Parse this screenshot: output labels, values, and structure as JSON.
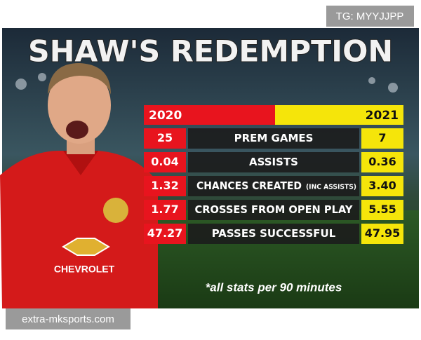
{
  "header": {
    "title": "SHAW'S REDEMPTION"
  },
  "table": {
    "columns": [
      "2020",
      "2021"
    ],
    "rows": [
      {
        "label": "PREM GAMES",
        "v2020": "25",
        "v2021": "7"
      },
      {
        "label": "ASSISTS",
        "v2020": "0.04",
        "v2021": "0.36"
      },
      {
        "label": "CHANCES CREATED",
        "note": "(INC ASSISTS)",
        "v2020": "1.32",
        "v2021": "3.40"
      },
      {
        "label": "CROSSES FROM OPEN PLAY",
        "v2020": "1.77",
        "v2021": "5.55"
      },
      {
        "label": "PASSES SUCCESSFUL",
        "v2020": "47.27",
        "v2021": "47.95"
      }
    ]
  },
  "footnote": "*all stats per 90 minutes",
  "shirt_sponsor": "CHEVROLET",
  "watermarks": {
    "top": "TG: MYYJJPP",
    "bottom": "extra-mksports.com"
  }
}
